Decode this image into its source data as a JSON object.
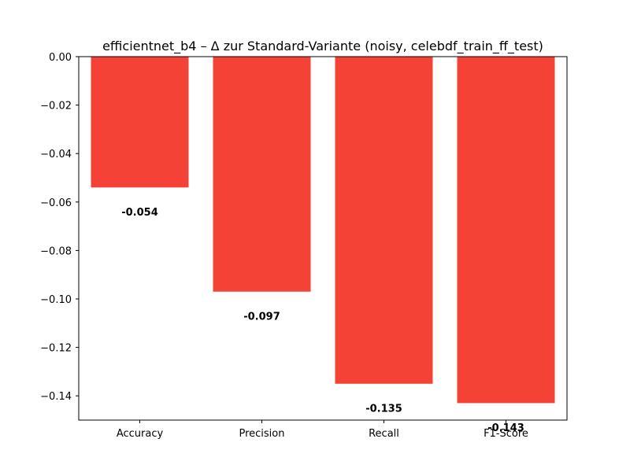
{
  "chart_data": {
    "type": "bar",
    "title": "efficientnet_b4 – Δ zur Standard-Variante (noisy, celebdf_train_ff_test)",
    "xlabel": "",
    "ylabel": "",
    "categories": [
      "Accuracy",
      "Precision",
      "Recall",
      "F1-Score"
    ],
    "values": [
      -0.054,
      -0.097,
      -0.135,
      -0.143
    ],
    "data_labels": [
      "-0.054",
      "-0.097",
      "-0.135",
      "-0.143"
    ],
    "ylim": [
      -0.15,
      0.0
    ],
    "yticks": [
      0.0,
      -0.02,
      -0.04,
      -0.06,
      -0.08,
      -0.1,
      -0.12,
      -0.14
    ],
    "ytick_labels": [
      "0.00",
      "−0.02",
      "−0.04",
      "−0.06",
      "−0.08",
      "−0.10",
      "−0.12",
      "−0.14"
    ],
    "bar_color": "#f44336",
    "grid": false,
    "legend": false
  }
}
